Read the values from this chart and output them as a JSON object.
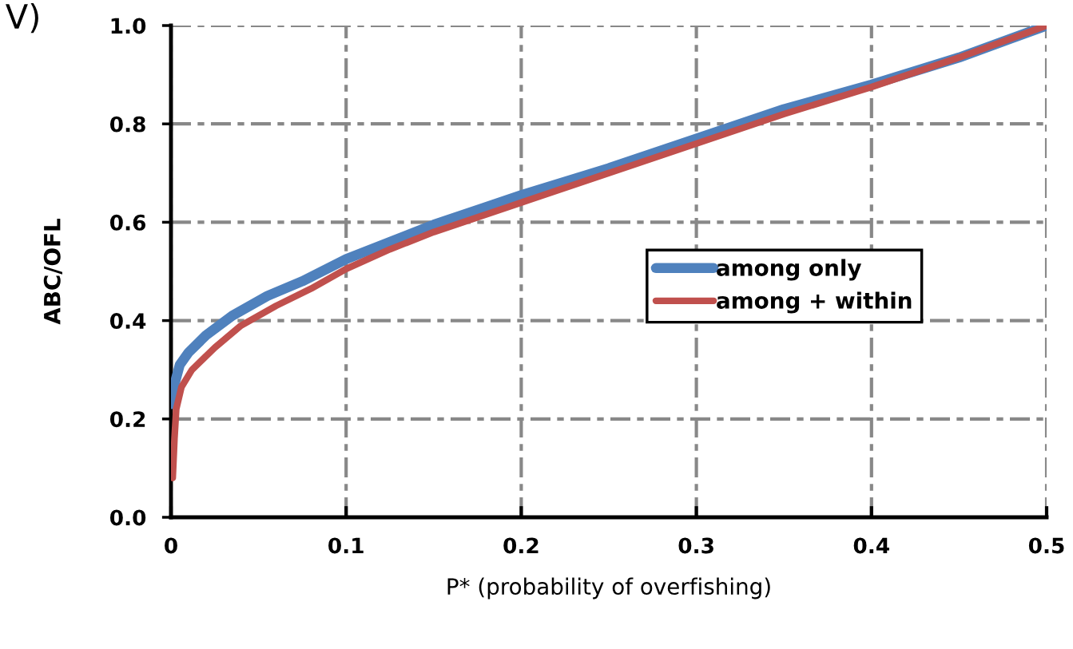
{
  "chart_data": {
    "type": "line",
    "xlabel": "P* (probability of overfishing)",
    "ylabel": "ABC/OFL",
    "annotations": [
      "V)"
    ],
    "xlim": [
      0,
      0.5
    ],
    "xticks": [
      {
        "value": 0,
        "label": "0"
      },
      0.1,
      0.2,
      0.3,
      0.4,
      0.5
    ],
    "ylim": [
      0,
      1
    ],
    "yticks": [
      {
        "value": 0,
        "label": "0.0"
      },
      0.2,
      0.4,
      0.6,
      0.8,
      {
        "value": 1,
        "label": "1.0"
      }
    ],
    "grid": true,
    "legend": "right",
    "marker": "none",
    "line_style": "solid",
    "series": [
      {
        "name": "among only",
        "color": "#4f81bd",
        "x": [
          0,
          0.002,
          0.005,
          0.01,
          0.02,
          0.035,
          0.055,
          0.075,
          0.1,
          0.125,
          0.15,
          0.2,
          0.25,
          0.3,
          0.35,
          0.4,
          0.45,
          0.5
        ],
        "values": [
          0.23,
          0.27,
          0.31,
          0.335,
          0.37,
          0.41,
          0.45,
          0.48,
          0.525,
          0.56,
          0.595,
          0.655,
          0.71,
          0.77,
          0.83,
          0.88,
          0.935,
          1.0
        ]
      },
      {
        "name": "among + within",
        "color": "#c0504d",
        "x": [
          0.001,
          0.002,
          0.003,
          0.006,
          0.012,
          0.025,
          0.04,
          0.06,
          0.08,
          0.1,
          0.125,
          0.15,
          0.2,
          0.25,
          0.3,
          0.35,
          0.4,
          0.45,
          0.5
        ],
        "values": [
          0.08,
          0.16,
          0.22,
          0.265,
          0.3,
          0.345,
          0.39,
          0.43,
          0.465,
          0.505,
          0.545,
          0.58,
          0.64,
          0.7,
          0.76,
          0.82,
          0.875,
          0.935,
          1.0
        ]
      }
    ]
  }
}
